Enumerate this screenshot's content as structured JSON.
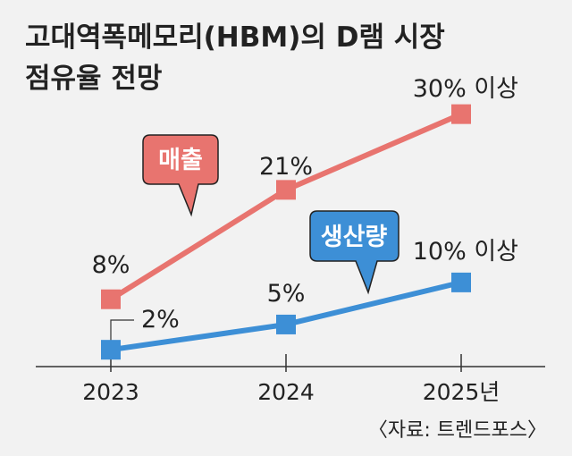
{
  "chart_data": {
    "type": "line",
    "title_line1": "고대역폭메모리(HBM)의 D램 시장",
    "title_line2": "점유율 전망",
    "categories": [
      "2023",
      "2024",
      "2025년"
    ],
    "series": [
      {
        "name": "매출",
        "values": [
          8,
          21,
          30
        ],
        "labels": [
          "8%",
          "21%",
          "30% 이상"
        ],
        "color": "#e8746f"
      },
      {
        "name": "생산량",
        "values": [
          2,
          5,
          10
        ],
        "labels": [
          "2%",
          "5%",
          "10% 이상"
        ],
        "color": "#3d8fd6"
      }
    ],
    "ylim": [
      0,
      34
    ],
    "grid": false,
    "source": "〈자료: 트렌드포스〉"
  }
}
